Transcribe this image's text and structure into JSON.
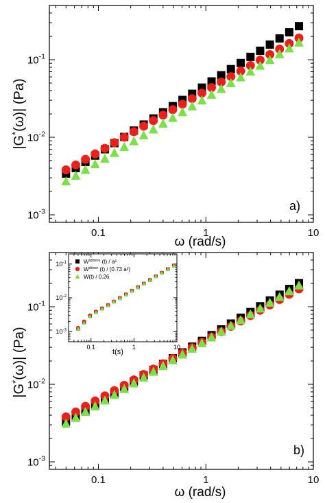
{
  "chart_data": [
    {
      "type": "scatter",
      "panel_label": "a)",
      "xlabel": "ω (rad/s)",
      "ylabel": "|G*(ω)| (Pa)",
      "xscale": "log",
      "yscale": "log",
      "xlim": [
        0.035,
        10
      ],
      "ylim": [
        0.0008,
        0.5
      ],
      "xticks": [
        {
          "v": 0.1,
          "label": "0.1"
        },
        {
          "v": 1,
          "label": "1"
        },
        {
          "v": 10,
          "label": "10"
        }
      ],
      "yticks": [
        {
          "v": 0.001,
          "base": "10",
          "exp": "-3"
        },
        {
          "v": 0.01,
          "base": "10",
          "exp": "-2"
        },
        {
          "v": 0.1,
          "base": "10",
          "exp": "-1"
        }
      ],
      "x": [
        0.05,
        0.0616,
        0.0758,
        0.0933,
        0.115,
        0.141,
        0.174,
        0.214,
        0.264,
        0.325,
        0.4,
        0.492,
        0.606,
        0.746,
        0.919,
        1.13,
        1.39,
        1.71,
        2.11,
        2.6,
        3.2,
        3.94,
        4.85,
        5.97,
        7.35
      ],
      "series": [
        {
          "marker": "square",
          "color": "#000000",
          "values": [
            0.0034,
            0.004,
            0.0048,
            0.0058,
            0.007,
            0.0084,
            0.0101,
            0.0122,
            0.0146,
            0.0175,
            0.021,
            0.0252,
            0.0303,
            0.0364,
            0.0437,
            0.0525,
            0.063,
            0.0756,
            0.0907,
            0.1088,
            0.1305,
            0.1566,
            0.1879,
            0.2255,
            0.2706
          ]
        },
        {
          "marker": "circle",
          "color": "#e8221b",
          "values": [
            0.0038,
            0.0044,
            0.0052,
            0.0061,
            0.0072,
            0.0085,
            0.01,
            0.0118,
            0.0139,
            0.0164,
            0.0193,
            0.0227,
            0.0267,
            0.0315,
            0.0371,
            0.0437,
            0.0515,
            0.0606,
            0.0714,
            0.0841,
            0.099,
            0.1166,
            0.1373,
            0.1617,
            0.1904
          ]
        },
        {
          "marker": "triangle",
          "color": "#7be04a",
          "values": [
            0.0027,
            0.0032,
            0.0038,
            0.0045,
            0.0053,
            0.0063,
            0.0075,
            0.0089,
            0.0106,
            0.0126,
            0.015,
            0.0178,
            0.0211,
            0.0251,
            0.0298,
            0.0354,
            0.042,
            0.0499,
            0.0593,
            0.0704,
            0.0836,
            0.0993,
            0.118,
            0.1401,
            0.1664
          ]
        }
      ]
    },
    {
      "type": "scatter",
      "panel_label": "b)",
      "xlabel": "ω (rad/s)",
      "ylabel": "|G*(ω)| (Pa)",
      "xscale": "log",
      "yscale": "log",
      "xlim": [
        0.035,
        10
      ],
      "ylim": [
        0.0008,
        0.5
      ],
      "xticks": [
        {
          "v": 0.1,
          "label": "0.1"
        },
        {
          "v": 1,
          "label": "1"
        },
        {
          "v": 10,
          "label": "10"
        }
      ],
      "yticks": [
        {
          "v": 0.001,
          "base": "10",
          "exp": "-3"
        },
        {
          "v": 0.01,
          "base": "10",
          "exp": "-2"
        },
        {
          "v": 0.1,
          "base": "10",
          "exp": "-1"
        }
      ],
      "x": [
        0.05,
        0.0616,
        0.0758,
        0.0933,
        0.115,
        0.141,
        0.174,
        0.214,
        0.264,
        0.325,
        0.4,
        0.492,
        0.606,
        0.746,
        0.919,
        1.13,
        1.39,
        1.71,
        2.11,
        2.6,
        3.2,
        3.94,
        4.85,
        5.97,
        7.35
      ],
      "series": [
        {
          "marker": "square",
          "color": "#000000",
          "values": [
            0.0033,
            0.0039,
            0.0046,
            0.0055,
            0.0065,
            0.0077,
            0.0092,
            0.0109,
            0.013,
            0.0154,
            0.0183,
            0.0217,
            0.0258,
            0.0306,
            0.0363,
            0.0431,
            0.0511,
            0.0607,
            0.0721,
            0.0855,
            0.1015,
            0.1205,
            0.143,
            0.1698,
            0.2015
          ]
        },
        {
          "marker": "circle",
          "color": "#e8221b",
          "values": [
            0.0038,
            0.0044,
            0.0052,
            0.0061,
            0.0071,
            0.0083,
            0.0097,
            0.0114,
            0.0134,
            0.0157,
            0.0184,
            0.0216,
            0.0253,
            0.0296,
            0.0347,
            0.0407,
            0.0477,
            0.0559,
            0.0655,
            0.0768,
            0.09,
            0.1055,
            0.1236,
            0.1449,
            0.1698
          ]
        },
        {
          "marker": "triangle",
          "color": "#7be04a",
          "values": [
            0.0031,
            0.0037,
            0.0044,
            0.0052,
            0.0062,
            0.0073,
            0.0087,
            0.0103,
            0.0122,
            0.0145,
            0.0172,
            0.0204,
            0.0242,
            0.0287,
            0.034,
            0.0404,
            0.0479,
            0.0568,
            0.0674,
            0.08,
            0.0949,
            0.1126,
            0.1336,
            0.1585,
            0.1881
          ]
        }
      ],
      "inset": {
        "xlabel": "t(s)",
        "xscale": "log",
        "yscale": "log",
        "xlim": [
          0.03,
          10
        ],
        "ylim": [
          0.0005,
          0.2
        ],
        "xticks": [
          {
            "v": 0.1,
            "label": "0.1"
          },
          {
            "v": 1,
            "label": "1"
          },
          {
            "v": 10,
            "label": "10"
          }
        ],
        "yticks": [
          {
            "v": 0.001,
            "base": "10",
            "exp": "-3"
          },
          {
            "v": 0.01,
            "base": "10",
            "exp": "-2"
          },
          {
            "v": 0.1,
            "base": "10",
            "exp": "-1"
          }
        ],
        "legend": [
          {
            "marker": "square",
            "color": "#000000",
            "label": "W",
            "sup": "sphere",
            "rest": " (t) / a²"
          },
          {
            "marker": "circle",
            "color": "#e8221b",
            "label": "W",
            "sup": "dimer",
            "rest": " (t) / (0.73 a²)"
          },
          {
            "marker": "triangle",
            "color": "#7be04a",
            "label": "W(t) / 0.26",
            "sup": "",
            "rest": ""
          }
        ],
        "x": [
          0.05,
          0.069,
          0.095,
          0.13,
          0.18,
          0.25,
          0.34,
          0.47,
          0.65,
          0.9,
          1.24,
          1.7,
          2.35,
          3.24,
          4.47,
          6.15,
          8.5
        ],
        "series": [
          {
            "marker": "square",
            "color": "#000000",
            "values": [
              0.0012,
              0.0019,
              0.0029,
              0.0038,
              0.0048,
              0.006,
              0.0077,
              0.0098,
              0.0125,
              0.016,
              0.0205,
              0.0262,
              0.0335,
              0.043,
              0.055,
              0.0705,
              0.09
            ]
          },
          {
            "marker": "circle",
            "color": "#e8221b",
            "values": [
              0.0013,
              0.002,
              0.003,
              0.0039,
              0.0049,
              0.0061,
              0.0078,
              0.01,
              0.0127,
              0.0162,
              0.0208,
              0.0265,
              0.034,
              0.0435,
              0.0555,
              0.071,
              0.091
            ]
          },
          {
            "marker": "triangle",
            "color": "#7be04a",
            "values": [
              0.0012,
              0.0018,
              0.0028,
              0.0037,
              0.0047,
              0.0059,
              0.0076,
              0.0097,
              0.0124,
              0.0159,
              0.0204,
              0.026,
              0.0333,
              0.0428,
              0.0548,
              0.07,
              0.0895
            ]
          }
        ]
      }
    }
  ]
}
